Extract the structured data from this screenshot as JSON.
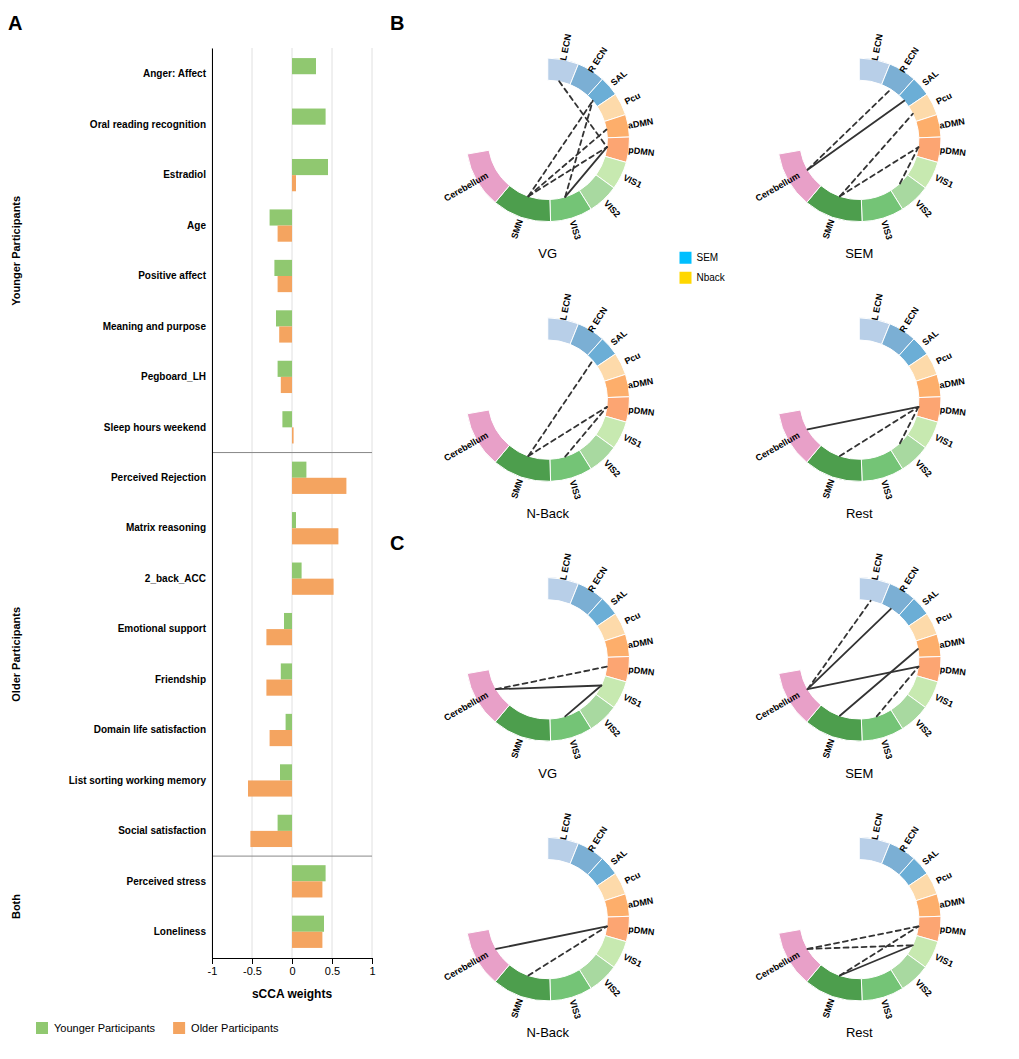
{
  "chart_data": [
    {
      "type": "bar",
      "orientation": "horizontal",
      "annotations": [
        "A"
      ],
      "categories": [
        "Anger: Affect",
        "Oral reading recognition",
        "Estradiol",
        "Age",
        "Positive affect",
        "Meaning and purpose",
        "Pegboard_LH",
        "Sleep hours weekend",
        "Perceived Rejection",
        "Matrix reasoning",
        "2_back_ACC",
        "Emotional support",
        "Friendship",
        "Domain life satisfaction",
        "List sorting working memory",
        "Social satisfaction",
        "Perceived stress",
        "Loneliness"
      ],
      "series": [
        {
          "name": "Younger Participants",
          "color": "#90C870",
          "values": [
            0.3,
            0.42,
            0.45,
            -0.28,
            -0.22,
            -0.2,
            -0.18,
            -0.12,
            0.18,
            0.05,
            0.12,
            -0.1,
            -0.14,
            -0.08,
            -0.15,
            -0.18,
            0.42,
            0.4
          ]
        },
        {
          "name": "Older Participants",
          "color": "#F4A460",
          "values": [
            0.0,
            0.0,
            0.05,
            -0.18,
            -0.18,
            -0.16,
            -0.14,
            0.02,
            0.68,
            0.58,
            0.52,
            -0.32,
            -0.32,
            -0.28,
            -0.55,
            -0.52,
            0.38,
            0.38
          ]
        }
      ],
      "groups": [
        {
          "name": "Younger Participants",
          "categories": [
            "Anger: Affect",
            "Oral reading recognition",
            "Estradiol",
            "Age",
            "Positive affect",
            "Meaning and purpose",
            "Pegboard_LH",
            "Sleep hours weekend"
          ]
        },
        {
          "name": "Older Participants",
          "categories": [
            "Perceived Rejection",
            "Matrix reasoning",
            "2_back_ACC",
            "Emotional support",
            "Friendship",
            "Domain life satisfaction",
            "List sorting working memory",
            "Social satisfaction"
          ]
        },
        {
          "name": "Both",
          "categories": [
            "Perceived stress",
            "Loneliness"
          ]
        }
      ],
      "xlabel": "sCCA weights",
      "xlim": [
        -1,
        1
      ],
      "xticks": [
        -1,
        -0.5,
        0,
        0.5,
        1
      ],
      "grid": true,
      "legend": "bottom"
    },
    {
      "type": "network",
      "title": "VG",
      "annotations": [
        "B"
      ],
      "categories": [
        "L ECN",
        "R ECN",
        "SAL",
        "Pcu",
        "aDMN",
        "pDMN",
        "VIS1",
        "VIS2",
        "VIS3",
        "SMN",
        "Cerebellum"
      ],
      "colors": [
        "#B8CFE8",
        "#7BAFD4",
        "#6BAED6",
        "#FDDAAA",
        "#FDAE6B",
        "#FCA572",
        "#C7E9B0",
        "#A8D9A0",
        "#74C476",
        "#4D9E4D",
        "#E8A0C8"
      ],
      "a_start": [
        90,
        68,
        48,
        34,
        18,
        2,
        -16,
        -36,
        -58,
        -88,
        -130
      ],
      "a_end": [
        68,
        48,
        34,
        18,
        2,
        -16,
        -36,
        -58,
        -88,
        -130,
        -170
      ],
      "links": [
        {
          "source": "SMN",
          "target": "SAL",
          "line_style": "dashed"
        },
        {
          "source": "SMN",
          "target": "aDMN",
          "line_style": "dashed"
        },
        {
          "source": "SMN",
          "target": "pDMN",
          "line_style": "dashed"
        },
        {
          "source": "VIS3",
          "target": "SAL",
          "line_style": "dashed"
        },
        {
          "source": "VIS3",
          "target": "pDMN",
          "line_style": "solid"
        },
        {
          "source": "L ECN",
          "target": "pDMN",
          "line_style": "dashed"
        }
      ]
    },
    {
      "type": "network",
      "title": "SEM",
      "categories": [
        "L ECN",
        "R ECN",
        "SAL",
        "Pcu",
        "aDMN",
        "pDMN",
        "VIS1",
        "VIS2",
        "VIS3",
        "SMN",
        "Cerebellum"
      ],
      "colors": [
        "#B8CFE8",
        "#7BAFD4",
        "#6BAED6",
        "#FDDAAA",
        "#FDAE6B",
        "#FCA572",
        "#C7E9B0",
        "#A8D9A0",
        "#74C476",
        "#4D9E4D",
        "#E8A0C8"
      ],
      "a_start": [
        90,
        68,
        48,
        34,
        18,
        2,
        -16,
        -36,
        -58,
        -88,
        -130
      ],
      "a_end": [
        68,
        48,
        34,
        18,
        2,
        -16,
        -36,
        -58,
        -88,
        -130,
        -170
      ],
      "links": [
        {
          "source": "Cerebellum",
          "target": "SAL",
          "line_style": "solid"
        },
        {
          "source": "Cerebellum",
          "target": "R ECN",
          "line_style": "dashed"
        },
        {
          "source": "SMN",
          "target": "pDMN",
          "line_style": "dashed"
        },
        {
          "source": "VIS2",
          "target": "pDMN",
          "line_style": "dashed"
        },
        {
          "source": "SMN",
          "target": "Pcu",
          "line_style": "dashed"
        }
      ]
    },
    {
      "type": "network",
      "title": "N-Back",
      "categories": [
        "L ECN",
        "R ECN",
        "SAL",
        "Pcu",
        "aDMN",
        "pDMN",
        "VIS1",
        "VIS2",
        "VIS3",
        "SMN",
        "Cerebellum"
      ],
      "colors": [
        "#B8CFE8",
        "#7BAFD4",
        "#6BAED6",
        "#FDDAAA",
        "#FDAE6B",
        "#FCA572",
        "#C7E9B0",
        "#A8D9A0",
        "#74C476",
        "#4D9E4D",
        "#E8A0C8"
      ],
      "a_start": [
        90,
        68,
        48,
        34,
        18,
        2,
        -16,
        -36,
        -58,
        -88,
        -130
      ],
      "a_end": [
        68,
        48,
        34,
        18,
        2,
        -16,
        -36,
        -58,
        -88,
        -130,
        -170
      ],
      "links": [
        {
          "source": "VIS3",
          "target": "pDMN",
          "line_style": "dashed"
        },
        {
          "source": "SMN",
          "target": "pDMN",
          "line_style": "dashed"
        },
        {
          "source": "SMN",
          "target": "SAL",
          "line_style": "dashed"
        }
      ]
    },
    {
      "type": "network",
      "title": "Rest",
      "categories": [
        "L ECN",
        "R ECN",
        "SAL",
        "Pcu",
        "aDMN",
        "pDMN",
        "VIS1",
        "VIS2",
        "VIS3",
        "SMN",
        "Cerebellum"
      ],
      "colors": [
        "#B8CFE8",
        "#7BAFD4",
        "#6BAED6",
        "#FDDAAA",
        "#FDAE6B",
        "#FCA572",
        "#C7E9B0",
        "#A8D9A0",
        "#74C476",
        "#4D9E4D",
        "#E8A0C8"
      ],
      "a_start": [
        90,
        68,
        48,
        34,
        18,
        2,
        -16,
        -36,
        -58,
        -88,
        -130
      ],
      "a_end": [
        68,
        48,
        34,
        18,
        2,
        -16,
        -36,
        -58,
        -88,
        -130,
        -170
      ],
      "links": [
        {
          "source": "Cerebellum",
          "target": "pDMN",
          "line_style": "solid"
        },
        {
          "source": "SMN",
          "target": "pDMN",
          "line_style": "dashed"
        },
        {
          "source": "VIS2",
          "target": "pDMN",
          "line_style": "dashed"
        }
      ]
    },
    {
      "type": "network",
      "title": "VG",
      "annotations": [
        "C"
      ],
      "categories": [
        "L ECN",
        "R ECN",
        "SAL",
        "Pcu",
        "aDMN",
        "pDMN",
        "VIS1",
        "VIS2",
        "VIS3",
        "SMN",
        "Cerebellum"
      ],
      "colors": [
        "#B8CFE8",
        "#7BAFD4",
        "#6BAED6",
        "#FDDAAA",
        "#FDAE6B",
        "#FCA572",
        "#C7E9B0",
        "#A8D9A0",
        "#74C476",
        "#4D9E4D",
        "#E8A0C8"
      ],
      "a_start": [
        90,
        68,
        48,
        34,
        18,
        2,
        -16,
        -36,
        -58,
        -88,
        -130
      ],
      "a_end": [
        68,
        48,
        34,
        18,
        2,
        -16,
        -36,
        -58,
        -88,
        -130,
        -170
      ],
      "links": [
        {
          "source": "Cerebellum",
          "target": "VIS1",
          "line_style": "solid"
        },
        {
          "source": "VIS3",
          "target": "VIS1",
          "line_style": "solid"
        },
        {
          "source": "Cerebellum",
          "target": "pDMN",
          "line_style": "dashed"
        }
      ]
    },
    {
      "type": "network",
      "title": "SEM",
      "categories": [
        "L ECN",
        "R ECN",
        "SAL",
        "Pcu",
        "aDMN",
        "pDMN",
        "VIS1",
        "VIS2",
        "VIS3",
        "SMN",
        "Cerebellum"
      ],
      "colors": [
        "#B8CFE8",
        "#7BAFD4",
        "#6BAED6",
        "#FDDAAA",
        "#FDAE6B",
        "#FCA572",
        "#C7E9B0",
        "#A8D9A0",
        "#74C476",
        "#4D9E4D",
        "#E8A0C8"
      ],
      "a_start": [
        90,
        68,
        48,
        34,
        18,
        2,
        -16,
        -36,
        -58,
        -88,
        -130
      ],
      "a_end": [
        68,
        48,
        34,
        18,
        2,
        -16,
        -36,
        -58,
        -88,
        -130,
        -170
      ],
      "links": [
        {
          "source": "Cerebellum",
          "target": "pDMN",
          "line_style": "solid"
        },
        {
          "source": "Cerebellum",
          "target": "R ECN",
          "line_style": "solid"
        },
        {
          "source": "Cerebellum",
          "target": "L ECN",
          "line_style": "dashed"
        },
        {
          "source": "VIS3",
          "target": "pDMN",
          "line_style": "dashed"
        },
        {
          "source": "SMN",
          "target": "aDMN",
          "line_style": "solid"
        }
      ]
    },
    {
      "type": "network",
      "title": "N-Back",
      "categories": [
        "L ECN",
        "R ECN",
        "SAL",
        "Pcu",
        "aDMN",
        "pDMN",
        "VIS1",
        "VIS2",
        "VIS3",
        "SMN",
        "Cerebellum"
      ],
      "colors": [
        "#B8CFE8",
        "#7BAFD4",
        "#6BAED6",
        "#FDDAAA",
        "#FDAE6B",
        "#FCA572",
        "#C7E9B0",
        "#A8D9A0",
        "#74C476",
        "#4D9E4D",
        "#E8A0C8"
      ],
      "a_start": [
        90,
        68,
        48,
        34,
        18,
        2,
        -16,
        -36,
        -58,
        -88,
        -130
      ],
      "a_end": [
        68,
        48,
        34,
        18,
        2,
        -16,
        -36,
        -58,
        -88,
        -130,
        -170
      ],
      "links": [
        {
          "source": "Cerebellum",
          "target": "pDMN",
          "line_style": "solid"
        },
        {
          "source": "SMN",
          "target": "pDMN",
          "line_style": "dashed"
        }
      ]
    },
    {
      "type": "network",
      "title": "Rest",
      "categories": [
        "L ECN",
        "R ECN",
        "SAL",
        "Pcu",
        "aDMN",
        "pDMN",
        "VIS1",
        "VIS2",
        "VIS3",
        "SMN",
        "Cerebellum"
      ],
      "colors": [
        "#B8CFE8",
        "#7BAFD4",
        "#6BAED6",
        "#FDDAAA",
        "#FDAE6B",
        "#FCA572",
        "#C7E9B0",
        "#A8D9A0",
        "#74C476",
        "#4D9E4D",
        "#E8A0C8"
      ],
      "a_start": [
        90,
        68,
        48,
        34,
        18,
        2,
        -16,
        -36,
        -58,
        -88,
        -130
      ],
      "a_end": [
        68,
        48,
        34,
        18,
        2,
        -16,
        -36,
        -58,
        -88,
        -130,
        -170
      ],
      "links": [
        {
          "source": "Cerebellum",
          "target": "VIS1",
          "line_style": "dashed"
        },
        {
          "source": "Cerebellum",
          "target": "pDMN",
          "line_style": "dashed"
        },
        {
          "source": "SMN",
          "target": "VIS1",
          "line_style": "solid"
        },
        {
          "source": "SMN",
          "target": "pDMN",
          "line_style": "dashed"
        }
      ]
    },
    {
      "type": "legend",
      "series": [
        {
          "name": "SEM",
          "color": "#00BFFF"
        },
        {
          "name": "Nback",
          "color": "#FFD700"
        }
      ]
    }
  ]
}
